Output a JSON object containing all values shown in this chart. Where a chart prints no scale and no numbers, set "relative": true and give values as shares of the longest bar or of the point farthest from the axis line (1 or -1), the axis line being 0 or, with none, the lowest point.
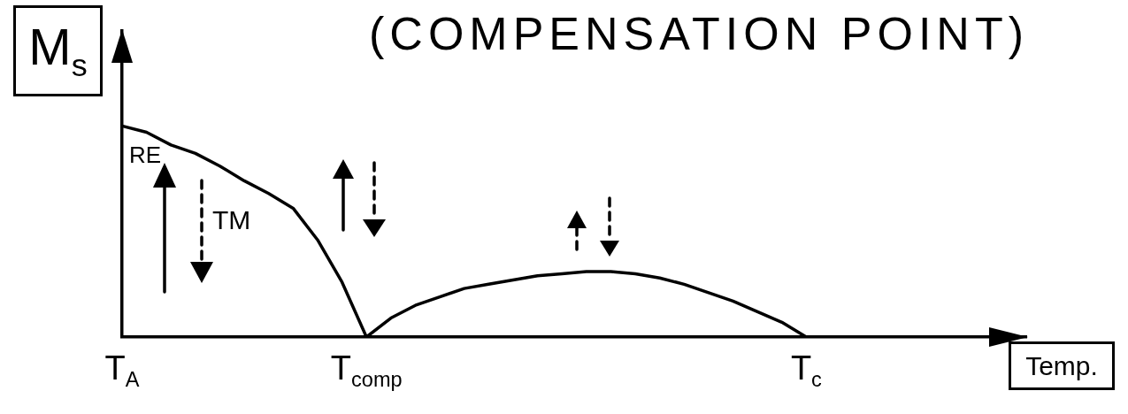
{
  "chart_data": {
    "type": "line",
    "title": "(COMPENSATION POINT)",
    "xlabel": "Temp.",
    "ylabel": "M$_{s}$",
    "relative": true,
    "categories": [
      "T$_{A}$",
      null,
      null,
      null,
      null,
      null,
      null,
      null,
      null,
      null,
      "T$_{comp}$",
      null,
      null,
      null,
      null,
      null,
      null,
      null,
      null,
      null,
      null,
      null,
      null,
      null,
      null,
      null,
      null,
      null,
      "T$_{c}$",
      null,
      null,
      null,
      null,
      null,
      null,
      null,
      null,
      null
    ],
    "values": [
      1,
      0.97,
      0.91,
      0.87,
      0.81,
      0.74,
      0.68,
      0.61,
      0.46,
      0.26,
      0,
      0.09,
      0.15,
      0.19,
      0.23,
      0.25,
      0.27,
      0.29,
      0.3,
      0.31,
      0.31,
      0.3,
      0.28,
      0.25,
      0.21,
      0.17,
      0.12,
      0.07,
      0,
      null,
      null,
      null,
      null,
      null,
      null,
      null,
      null,
      null
    ],
    "color": "#000000",
    "marker": "none",
    "line_style": "solid",
    "tick_labels": "x",
    "annotations": [
      "RE",
      "TM"
    ]
  }
}
